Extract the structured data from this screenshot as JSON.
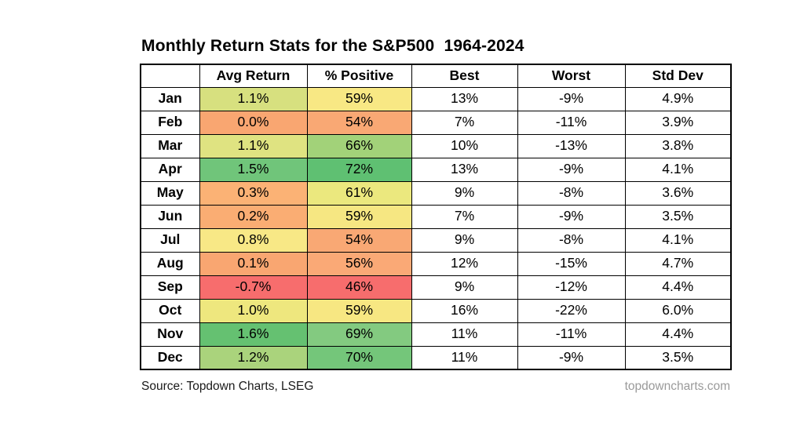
{
  "title": "Monthly Return Stats for the S&P500  1964-2024",
  "chart_data": {
    "type": "table",
    "title": "Monthly Return Stats for the S&P500  1964-2024",
    "columns": [
      "",
      "Avg Return",
      "% Positive",
      "Best",
      "Worst",
      "Std Dev"
    ],
    "heatmap_columns": [
      "Avg Return",
      "% Positive"
    ],
    "rows": [
      {
        "month": "Jan",
        "avg_return": "1.1%",
        "pct_positive": "59%",
        "best": "13%",
        "worst": "-9%",
        "std_dev": "4.9%",
        "avg_color": "#d7e07f",
        "pos_color": "#f8e884"
      },
      {
        "month": "Feb",
        "avg_return": "0.0%",
        "pct_positive": "54%",
        "best": "7%",
        "worst": "-11%",
        "std_dev": "3.9%",
        "avg_color": "#f9a671",
        "pos_color": "#f9a874"
      },
      {
        "month": "Mar",
        "avg_return": "1.1%",
        "pct_positive": "66%",
        "best": "10%",
        "worst": "-13%",
        "std_dev": "3.8%",
        "avg_color": "#dfe381",
        "pos_color": "#a2d279"
      },
      {
        "month": "Apr",
        "avg_return": "1.5%",
        "pct_positive": "72%",
        "best": "13%",
        "worst": "-9%",
        "std_dev": "4.1%",
        "avg_color": "#70c57a",
        "pos_color": "#5fc072"
      },
      {
        "month": "May",
        "avg_return": "0.3%",
        "pct_positive": "61%",
        "best": "9%",
        "worst": "-8%",
        "std_dev": "3.6%",
        "avg_color": "#fbb275",
        "pos_color": "#ebe87e"
      },
      {
        "month": "Jun",
        "avg_return": "0.2%",
        "pct_positive": "59%",
        "best": "7%",
        "worst": "-9%",
        "std_dev": "3.5%",
        "avg_color": "#faad73",
        "pos_color": "#f6e782"
      },
      {
        "month": "Jul",
        "avg_return": "0.8%",
        "pct_positive": "54%",
        "best": "9%",
        "worst": "-8%",
        "std_dev": "4.1%",
        "avg_color": "#f8e886",
        "pos_color": "#f9a874"
      },
      {
        "month": "Aug",
        "avg_return": "0.1%",
        "pct_positive": "56%",
        "best": "12%",
        "worst": "-15%",
        "std_dev": "4.7%",
        "avg_color": "#f9a671",
        "pos_color": "#faa976"
      },
      {
        "month": "Sep",
        "avg_return": "-0.7%",
        "pct_positive": "46%",
        "best": "9%",
        "worst": "-12%",
        "std_dev": "4.4%",
        "avg_color": "#f76d6d",
        "pos_color": "#f76d6d"
      },
      {
        "month": "Oct",
        "avg_return": "1.0%",
        "pct_positive": "59%",
        "best": "16%",
        "worst": "-22%",
        "std_dev": "6.0%",
        "avg_color": "#eee77e",
        "pos_color": "#f7e782"
      },
      {
        "month": "Nov",
        "avg_return": "1.6%",
        "pct_positive": "69%",
        "best": "11%",
        "worst": "-11%",
        "std_dev": "4.4%",
        "avg_color": "#65c171",
        "pos_color": "#83ca80"
      },
      {
        "month": "Dec",
        "avg_return": "1.2%",
        "pct_positive": "70%",
        "best": "11%",
        "worst": "-9%",
        "std_dev": "3.5%",
        "avg_color": "#aad37c",
        "pos_color": "#74c67a"
      }
    ]
  },
  "footer": {
    "source": "Source: Topdown Charts, LSEG",
    "website": "topdowncharts.com"
  }
}
